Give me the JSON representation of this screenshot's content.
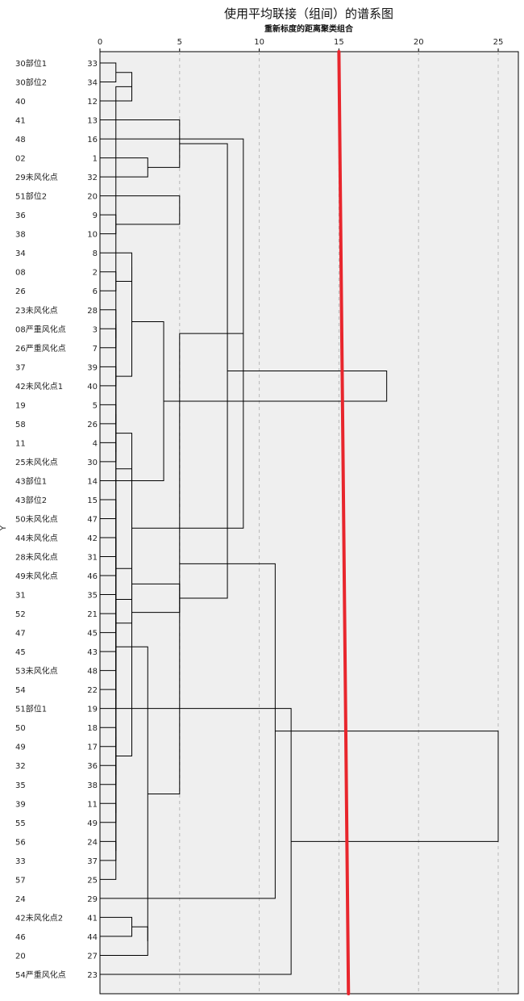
{
  "chart_data": {
    "type": "dendrogram",
    "title": "使用平均联接（组间）的谱系图",
    "xlabel": "重新标度的距离聚类组合",
    "ylabel": "Y",
    "xlim": [
      0,
      25
    ],
    "xticks": [
      0,
      5,
      10,
      15,
      20,
      25
    ],
    "grid": true,
    "leaves": [
      {
        "label": "30部位1",
        "id": "33"
      },
      {
        "label": "30部位2",
        "id": "34"
      },
      {
        "label": "40",
        "id": "12"
      },
      {
        "label": "41",
        "id": "13"
      },
      {
        "label": "48",
        "id": "16"
      },
      {
        "label": "02",
        "id": "1"
      },
      {
        "label": "29未风化点",
        "id": "32"
      },
      {
        "label": "51部位2",
        "id": "20"
      },
      {
        "label": "36",
        "id": "9"
      },
      {
        "label": "38",
        "id": "10"
      },
      {
        "label": "34",
        "id": "8"
      },
      {
        "label": "08",
        "id": "2"
      },
      {
        "label": "26",
        "id": "6"
      },
      {
        "label": "23未风化点",
        "id": "28"
      },
      {
        "label": "08严重风化点",
        "id": "3"
      },
      {
        "label": "26严重风化点",
        "id": "7"
      },
      {
        "label": "37",
        "id": "39"
      },
      {
        "label": "42未风化点1",
        "id": "40"
      },
      {
        "label": "19",
        "id": "5"
      },
      {
        "label": "58",
        "id": "26"
      },
      {
        "label": "11",
        "id": "4"
      },
      {
        "label": "25未风化点",
        "id": "30"
      },
      {
        "label": "43部位1",
        "id": "14"
      },
      {
        "label": "43部位2",
        "id": "15"
      },
      {
        "label": "50未风化点",
        "id": "47"
      },
      {
        "label": "44未风化点",
        "id": "42"
      },
      {
        "label": "28未风化点",
        "id": "31"
      },
      {
        "label": "49未风化点",
        "id": "46"
      },
      {
        "label": "31",
        "id": "35"
      },
      {
        "label": "52",
        "id": "21"
      },
      {
        "label": "47",
        "id": "45"
      },
      {
        "label": "45",
        "id": "43"
      },
      {
        "label": "53未风化点",
        "id": "48"
      },
      {
        "label": "54",
        "id": "22"
      },
      {
        "label": "51部位1",
        "id": "19"
      },
      {
        "label": "50",
        "id": "18"
      },
      {
        "label": "49",
        "id": "17"
      },
      {
        "label": "32",
        "id": "36"
      },
      {
        "label": "35",
        "id": "38"
      },
      {
        "label": "39",
        "id": "11"
      },
      {
        "label": "55",
        "id": "49"
      },
      {
        "label": "56",
        "id": "24"
      },
      {
        "label": "33",
        "id": "37"
      },
      {
        "label": "57",
        "id": "25"
      },
      {
        "label": "24",
        "id": "29"
      },
      {
        "label": "42未风化点2",
        "id": "41"
      },
      {
        "label": "46",
        "id": "44"
      },
      {
        "label": "20",
        "id": "27"
      },
      {
        "label": "54严重风化点",
        "id": "23"
      }
    ],
    "merges": [
      [
        0,
        1,
        1.0
      ],
      [
        45,
        46,
        2.0
      ],
      [
        5,
        6,
        3.0
      ],
      [
        8,
        9,
        1.0
      ],
      [
        11,
        12,
        1.0
      ],
      [
        14,
        15,
        1.0
      ],
      [
        16,
        17,
        1.0
      ],
      [
        19,
        18,
        1.0
      ],
      [
        20,
        21,
        1.0
      ],
      [
        23,
        24,
        1.0
      ],
      [
        26,
        27,
        1.0
      ],
      [
        29,
        30,
        1.0
      ],
      [
        31,
        32,
        1.0
      ],
      [
        33,
        34,
        1.0
      ],
      [
        35,
        36,
        1.0
      ],
      [
        37,
        38,
        1.0
      ],
      [
        39,
        40,
        1.0
      ],
      [
        41,
        42,
        1.0
      ],
      [
        49,
        2,
        2.0
      ],
      [
        53,
        10,
        2.0
      ],
      [
        54,
        13,
        1.0
      ],
      [
        56,
        57,
        1.0
      ],
      [
        58,
        59,
        1.0
      ],
      [
        61,
        25,
        1.0
      ],
      [
        62,
        28,
        1.0
      ],
      [
        63,
        64,
        1.0
      ],
      [
        69,
        65,
        1.0
      ],
      [
        66,
        67,
        1.0
      ],
      [
        71,
        43,
        1.0
      ],
      [
        50,
        47,
        3.0
      ],
      [
        68,
        55,
        2.0
      ],
      [
        75,
        72,
        2.0
      ],
      [
        70,
        60,
        2.0
      ],
      [
        74,
        76,
        2.0
      ],
      [
        73,
        78,
        3.0
      ],
      [
        52,
        7,
        5.0
      ],
      [
        51,
        3,
        5.0
      ],
      [
        81,
        4,
        9.0
      ],
      [
        79,
        22,
        4.0
      ],
      [
        80,
        82,
        5.0
      ],
      [
        83,
        86,
        5.0
      ],
      [
        85,
        88,
        8.0
      ],
      [
        89,
        44,
        11.0
      ],
      [
        77,
        48,
        12.0
      ],
      [
        87,
        90,
        18.0
      ],
      [
        92,
        91,
        25.0
      ]
    ],
    "cut_line": {
      "color": "#e8262d",
      "x_start": 15.0,
      "x_end": 15.6
    }
  }
}
